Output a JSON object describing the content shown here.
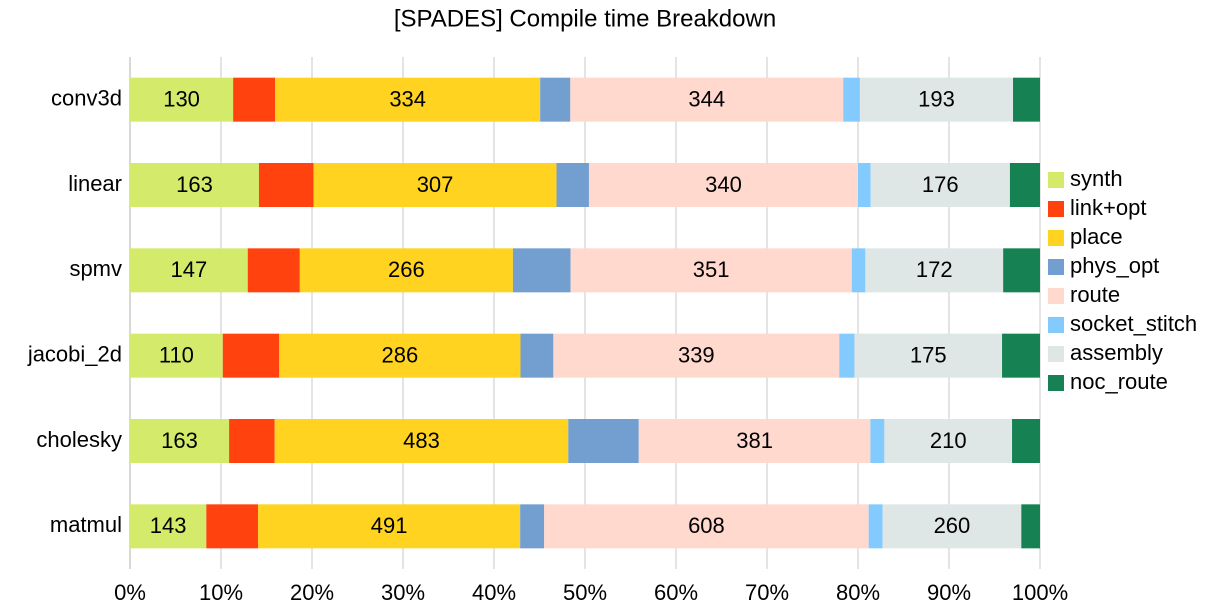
{
  "chart_data": {
    "type": "stacked_percent_barh",
    "title": "[SPADES] Compile time Breakdown",
    "categories": [
      "conv3d",
      "linear",
      "spmv",
      "jacobi_2d",
      "cholesky",
      "matmul"
    ],
    "series": [
      {
        "name": "synth",
        "color": "#d4ea6b",
        "data_labels": true,
        "values": [
          130,
          163,
          147,
          110,
          163,
          143
        ]
      },
      {
        "name": "link+opt",
        "color": "#ff420e",
        "data_labels": false,
        "values": [
          53,
          69,
          65,
          67,
          75,
          97
        ]
      },
      {
        "name": "place",
        "color": "#ffd320",
        "data_labels": true,
        "values": [
          334,
          307,
          266,
          286,
          483,
          491
        ]
      },
      {
        "name": "phys_opt",
        "color": "#729fcf",
        "data_labels": false,
        "values": [
          38,
          41,
          72,
          39,
          116,
          45
        ]
      },
      {
        "name": "route",
        "color": "#ffd8ce",
        "data_labels": true,
        "values": [
          344,
          340,
          351,
          339,
          381,
          608
        ]
      },
      {
        "name": "socket_stitch",
        "color": "#83caff",
        "data_labels": false,
        "values": [
          21,
          16,
          17,
          18,
          23,
          26
        ]
      },
      {
        "name": "assembly",
        "color": "#dee6e6",
        "data_labels": true,
        "values": [
          193,
          176,
          172,
          175,
          210,
          260
        ]
      },
      {
        "name": "noc_route",
        "color": "#168253",
        "data_labels": false,
        "values": [
          34,
          38,
          46,
          45,
          46,
          35
        ]
      }
    ],
    "xlim": [
      0,
      100
    ],
    "xticks": [
      {
        "value": 0,
        "label": "0%"
      },
      {
        "value": 10,
        "label": "10%"
      },
      {
        "value": 20,
        "label": "20%"
      },
      {
        "value": 30,
        "label": "30%"
      },
      {
        "value": 40,
        "label": "40%"
      },
      {
        "value": 50,
        "label": "50%"
      },
      {
        "value": 60,
        "label": "60%"
      },
      {
        "value": 70,
        "label": "70%"
      },
      {
        "value": 80,
        "label": "80%"
      },
      {
        "value": 90,
        "label": "90%"
      },
      {
        "value": 100,
        "label": "100%"
      }
    ],
    "grid": true,
    "legend": "right"
  }
}
